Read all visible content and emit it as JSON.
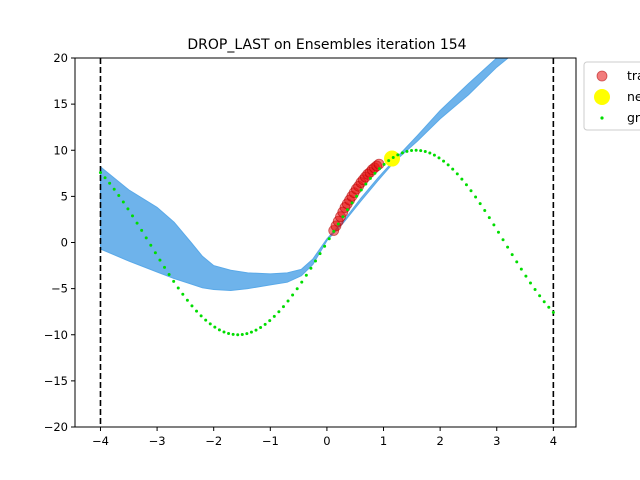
{
  "chart_data": {
    "type": "scatter",
    "title": "DROP_LAST on Ensembles iteration 154",
    "xlabel": "",
    "ylabel": "",
    "xlim": [
      -4.45,
      4.4
    ],
    "ylim": [
      -20,
      20
    ],
    "xticks": [
      -4,
      -3,
      -2,
      -1,
      0,
      1,
      2,
      3,
      4
    ],
    "xtick_labels": [
      "−4",
      "−3",
      "−2",
      "−1",
      "0",
      "1",
      "2",
      "3",
      "4"
    ],
    "yticks": [
      -20,
      -15,
      -10,
      -5,
      0,
      5,
      10,
      15,
      20
    ],
    "ytick_labels": [
      "−20",
      "−15",
      "−10",
      "−5",
      "0",
      "5",
      "10",
      "15",
      "20"
    ],
    "grid": false,
    "legend_position": "upper-right-outside",
    "vertical_lines": [
      {
        "x": -4,
        "style": "dashed",
        "color": "#000000"
      },
      {
        "x": 4,
        "style": "dashed",
        "color": "#000000"
      }
    ],
    "uncertainty_band": {
      "color": "#5aa9e8",
      "x": [
        -4.0,
        -3.5,
        -3.0,
        -2.7,
        -2.4,
        -2.2,
        -2.0,
        -1.7,
        -1.4,
        -1.0,
        -0.7,
        -0.45,
        -0.25,
        0.0,
        0.3,
        0.6,
        0.9,
        1.2,
        1.6,
        2.0,
        2.5,
        3.0,
        3.3
      ],
      "upper": [
        8.2,
        5.7,
        3.8,
        2.2,
        0.0,
        -1.5,
        -2.5,
        -3.0,
        -3.3,
        -3.4,
        -3.3,
        -2.9,
        -1.8,
        0.4,
        2.4,
        4.8,
        7.0,
        9.0,
        11.6,
        14.3,
        17.2,
        20.0,
        21.5
      ],
      "lower": [
        -0.7,
        -2.0,
        -3.2,
        -3.9,
        -4.5,
        -4.9,
        -5.1,
        -5.2,
        -5.0,
        -4.6,
        -4.3,
        -3.6,
        -2.4,
        0.2,
        2.2,
        4.5,
        6.7,
        8.8,
        11.0,
        13.4,
        16.0,
        19.0,
        20.5
      ]
    },
    "series": [
      {
        "name": "train",
        "label": "tra",
        "color": "#e81010",
        "marker": "circle",
        "points": [
          [
            0.12,
            1.3
          ],
          [
            0.16,
            1.8
          ],
          [
            0.2,
            2.3
          ],
          [
            0.24,
            2.8
          ],
          [
            0.28,
            3.3
          ],
          [
            0.32,
            3.8
          ],
          [
            0.36,
            4.2
          ],
          [
            0.4,
            4.6
          ],
          [
            0.44,
            5.0
          ],
          [
            0.48,
            5.4
          ],
          [
            0.52,
            5.8
          ],
          [
            0.56,
            6.1
          ],
          [
            0.6,
            6.5
          ],
          [
            0.64,
            6.8
          ],
          [
            0.68,
            7.1
          ],
          [
            0.72,
            7.4
          ],
          [
            0.76,
            7.6
          ],
          [
            0.8,
            7.9
          ],
          [
            0.84,
            8.1
          ],
          [
            0.88,
            8.3
          ],
          [
            0.92,
            8.5
          ]
        ]
      },
      {
        "name": "new",
        "label": "ne",
        "color": "#ffff00",
        "marker": "circle",
        "points": [
          [
            1.15,
            9.1
          ]
        ]
      },
      {
        "name": "ground truth",
        "label": "gr",
        "color": "#00dd00",
        "marker": "dot",
        "function": "10*sin(x)",
        "x_range": [
          -4,
          4
        ],
        "n_points": 100
      }
    ]
  }
}
